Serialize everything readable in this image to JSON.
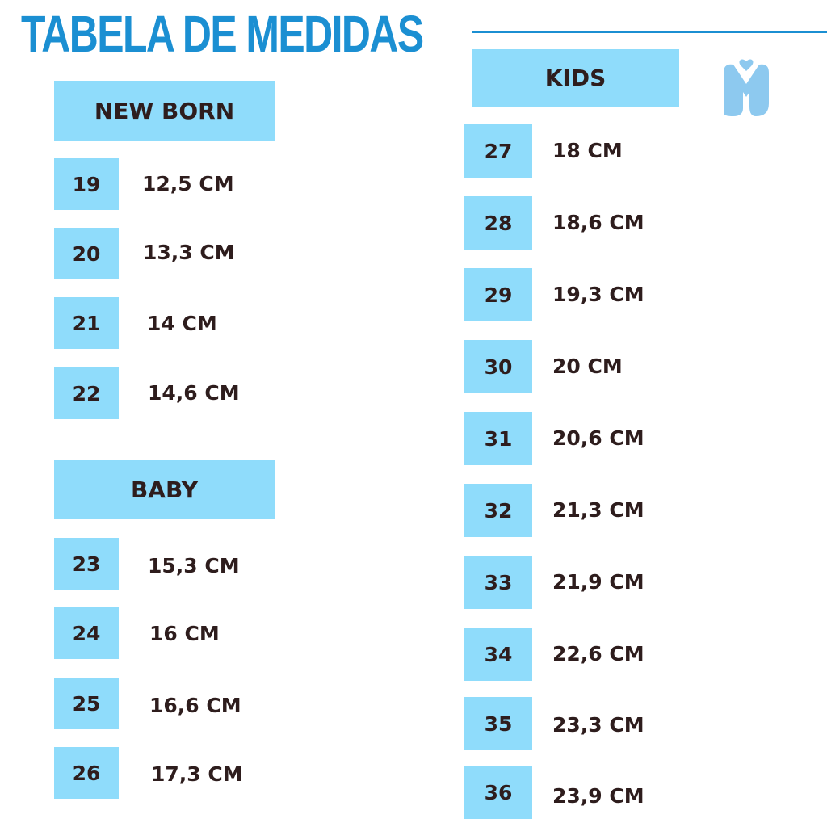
{
  "title": "TABELA DE MEDIDAS",
  "brand_color": "#1b8fd2",
  "box_color": "#8fdcfb",
  "text_color": "#2e1d1d",
  "logo": {
    "icon": "brand-logo-icon",
    "glyph": "M"
  },
  "new_born": {
    "label": "NEW BORN",
    "rows": [
      {
        "size": "19",
        "measure": "12,5 CM"
      },
      {
        "size": "20",
        "measure": "13,3 CM"
      },
      {
        "size": "21",
        "measure": "14 CM"
      },
      {
        "size": "22",
        "measure": "14,6 CM"
      }
    ]
  },
  "baby": {
    "label": "BABY",
    "rows": [
      {
        "size": "23",
        "measure": "15,3 CM"
      },
      {
        "size": "24",
        "measure": "16 CM"
      },
      {
        "size": "25",
        "measure": "16,6 CM"
      },
      {
        "size": "26",
        "measure": "17,3 CM"
      }
    ]
  },
  "kids": {
    "label": "KIDS",
    "rows": [
      {
        "size": "27",
        "measure": "18 CM"
      },
      {
        "size": "28",
        "measure": "18,6 CM"
      },
      {
        "size": "29",
        "measure": "19,3 CM"
      },
      {
        "size": "30",
        "measure": "20 CM"
      },
      {
        "size": "31",
        "measure": "20,6 CM"
      },
      {
        "size": "32",
        "measure": "21,3 CM"
      },
      {
        "size": "33",
        "measure": "21,9 CM"
      },
      {
        "size": "34",
        "measure": "22,6 CM"
      },
      {
        "size": "35",
        "measure": "23,3 CM"
      },
      {
        "size": "36",
        "measure": "23,9 CM"
      }
    ]
  }
}
